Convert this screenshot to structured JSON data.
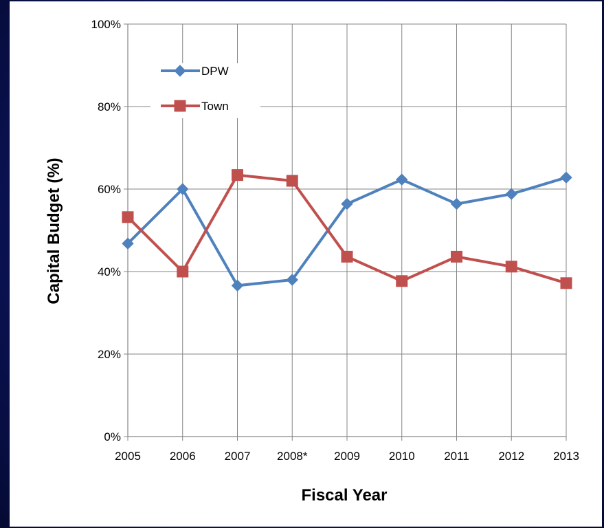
{
  "chart_data": {
    "type": "line",
    "categories": [
      "2005",
      "2006",
      "2007",
      "2008*",
      "2009",
      "2010",
      "2011",
      "2012",
      "2013"
    ],
    "series": [
      {
        "name": "DPW",
        "color": "#4f81bd",
        "marker": "diamond",
        "values": [
          46.8,
          60.0,
          36.6,
          38.0,
          56.4,
          62.3,
          56.4,
          58.8,
          62.8
        ]
      },
      {
        "name": "Town",
        "color": "#c0504d",
        "marker": "square",
        "values": [
          53.2,
          40.0,
          63.4,
          62.0,
          43.6,
          37.7,
          43.6,
          41.2,
          37.2
        ]
      }
    ],
    "xlabel": "Fiscal Year",
    "ylabel": "Capital Budget (%)",
    "ylim": [
      0,
      100
    ],
    "yticks": [
      0,
      20,
      40,
      60,
      80,
      100
    ],
    "ytick_labels": [
      "0%",
      "20%",
      "40%",
      "60%",
      "80%",
      "100%"
    ],
    "grid": true,
    "legend_position": "top-left"
  }
}
